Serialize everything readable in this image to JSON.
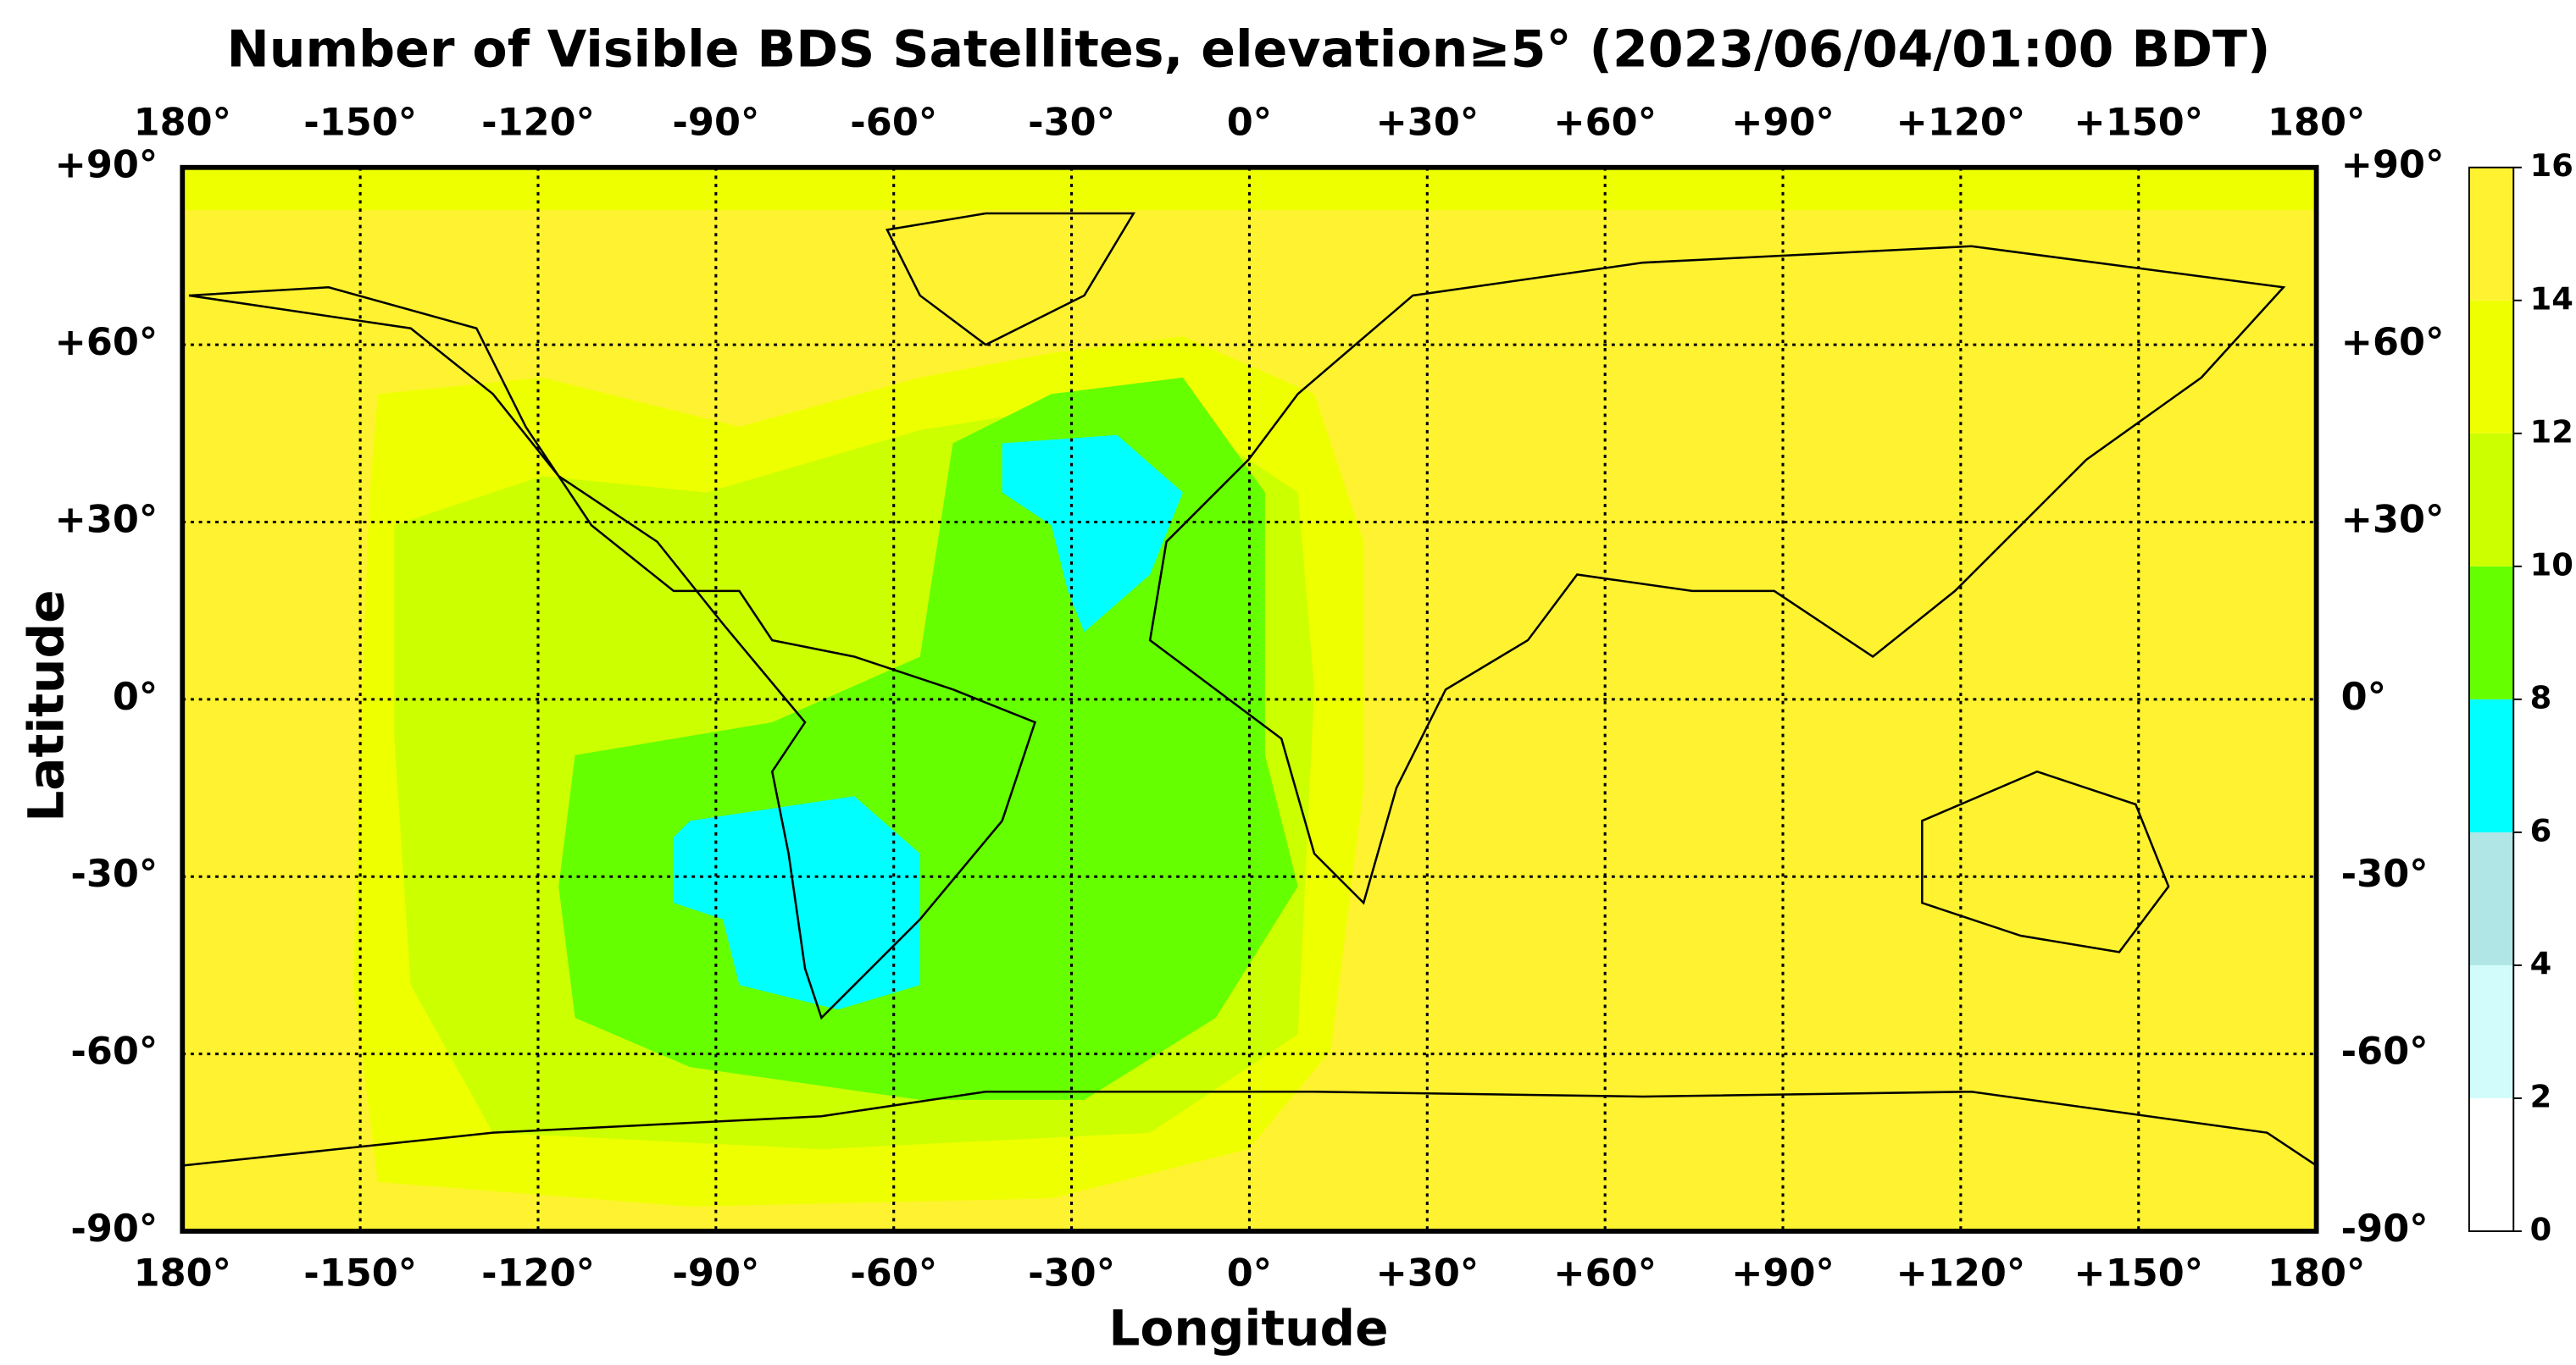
{
  "chart_data": {
    "type": "map",
    "title": "Number of Visible BDS Satellites, elevation≥5° (2023/06/04/01:00 BDT)",
    "xlabel": "Longitude",
    "ylabel": "Latitude",
    "xlim": [
      -180,
      180
    ],
    "ylim": [
      -90,
      90
    ],
    "xticks": [
      {
        "value": -180,
        "label": "180°"
      },
      {
        "value": -150,
        "label": "-150°"
      },
      {
        "value": -120,
        "label": "-120°"
      },
      {
        "value": -90,
        "label": "-90°"
      },
      {
        "value": -60,
        "label": "-60°"
      },
      {
        "value": -30,
        "label": "-30°"
      },
      {
        "value": 0,
        "label": "0°"
      },
      {
        "value": 30,
        "label": "+30°"
      },
      {
        "value": 60,
        "label": "+60°"
      },
      {
        "value": 90,
        "label": "+90°"
      },
      {
        "value": 120,
        "label": "+120°"
      },
      {
        "value": 150,
        "label": "+150°"
      },
      {
        "value": 180,
        "label": "180°"
      }
    ],
    "yticks": [
      {
        "value": 90,
        "label": "+90°"
      },
      {
        "value": 60,
        "label": "+60°"
      },
      {
        "value": 30,
        "label": "+30°"
      },
      {
        "value": 0,
        "label": "0°"
      },
      {
        "value": -30,
        "label": "-30°"
      },
      {
        "value": -60,
        "label": "-60°"
      },
      {
        "value": -90,
        "label": "-90°"
      }
    ],
    "grid": true,
    "colorbar": {
      "lim": [
        0,
        16
      ],
      "ticks": [
        0,
        2,
        4,
        6,
        8,
        10,
        12,
        14,
        16
      ],
      "colors": [
        "#ffffff",
        "#d2fcfc",
        "#b0e6e6",
        "#00ffff",
        "#66ff00",
        "#ccff00",
        "#eeff00",
        "#fff230"
      ]
    }
  }
}
